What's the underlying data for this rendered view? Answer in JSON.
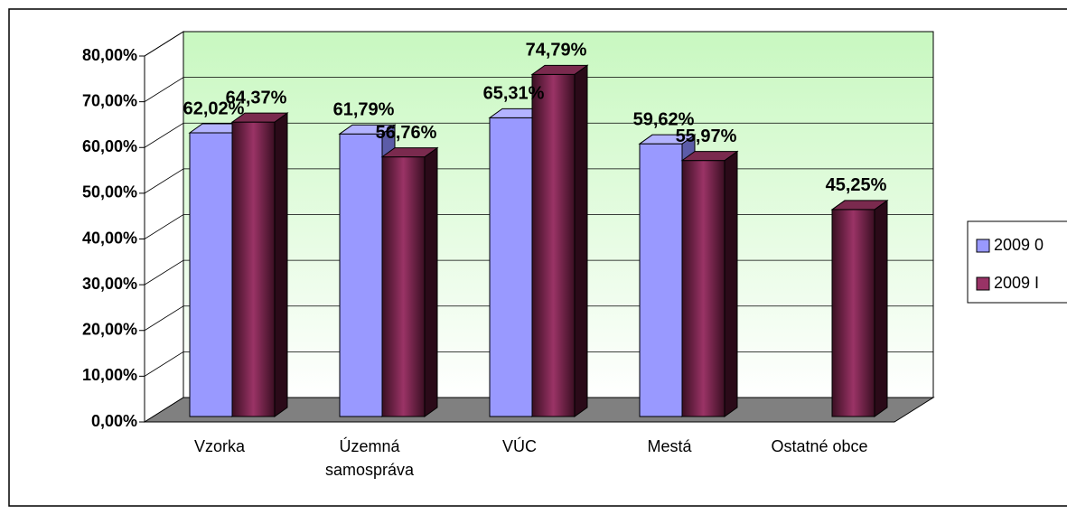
{
  "chart_data": {
    "type": "bar3d",
    "categories": [
      "Vzorka",
      "Územná samospráva",
      "VÚC",
      "Mestá",
      "Ostatné obce"
    ],
    "series": [
      {
        "name": "2009 0",
        "color": "#9999ff",
        "values": [
          62.02,
          61.79,
          65.31,
          59.62,
          null
        ],
        "value_labels": [
          "62,02%",
          "61,79%",
          "65,31%",
          "59,62%",
          null
        ]
      },
      {
        "name": "2009 I",
        "color": "#993366",
        "values": [
          64.37,
          56.76,
          74.79,
          55.97,
          45.25
        ],
        "value_labels": [
          "64,37%",
          "56,76%",
          "74,79%",
          "55,97%",
          "45,25%"
        ]
      }
    ],
    "ylim": [
      0,
      80
    ],
    "yticks": [
      {
        "value": 0,
        "label": "0,00%"
      },
      {
        "value": 10,
        "label": "10,00%"
      },
      {
        "value": 20,
        "label": "20,00%"
      },
      {
        "value": 30,
        "label": "30,00%"
      },
      {
        "value": 40,
        "label": "40,00%"
      },
      {
        "value": 50,
        "label": "50,00%"
      },
      {
        "value": 60,
        "label": "60,00%"
      },
      {
        "value": 70,
        "label": "70,00%"
      },
      {
        "value": 80,
        "label": "80,00%"
      }
    ],
    "grid": true,
    "legend": "right"
  }
}
